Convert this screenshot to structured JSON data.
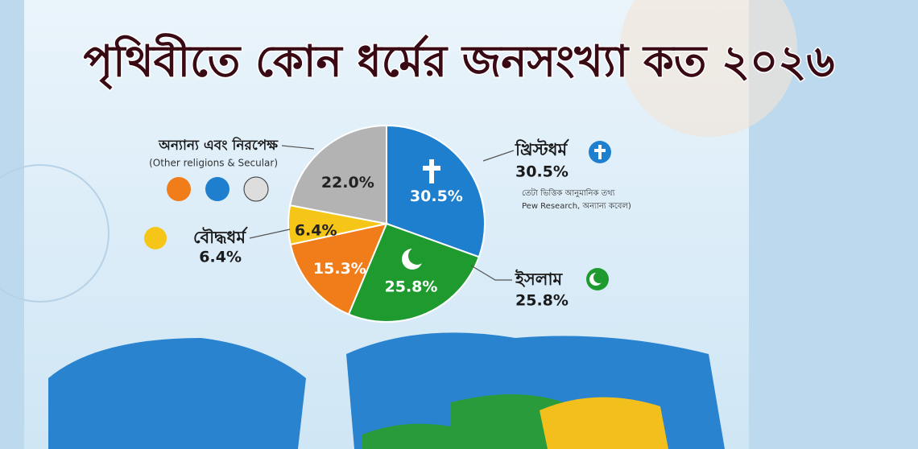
{
  "chart_data": {
    "type": "pie",
    "title": "পৃথিবীতে কোন ধর্মের জনসংখ্যা কত ২০২৬",
    "categories": [
      "খ্রিস্টধর্ম",
      "ইসলাম",
      null,
      "বৌদ্ধধর্ম",
      "অন্যান্য এবং নিরপেক্ষ"
    ],
    "values": [
      30.5,
      25.8,
      15.3,
      6.4,
      22.0
    ],
    "value_labels": [
      "30.5%",
      "25.8%",
      "15.3%",
      "6.4%",
      "22.0%"
    ],
    "colors": [
      "#1f7fcf",
      "#1e9a2e",
      "#f07d1a",
      "#f5c518",
      "#b3b3b3"
    ],
    "annotations": [
      "(Other religions & Secular)",
      "তেটা ভিত্তিক আনুমানিক তথ্য",
      "Pew Research, অন্যান্য কবেল)"
    ]
  }
}
